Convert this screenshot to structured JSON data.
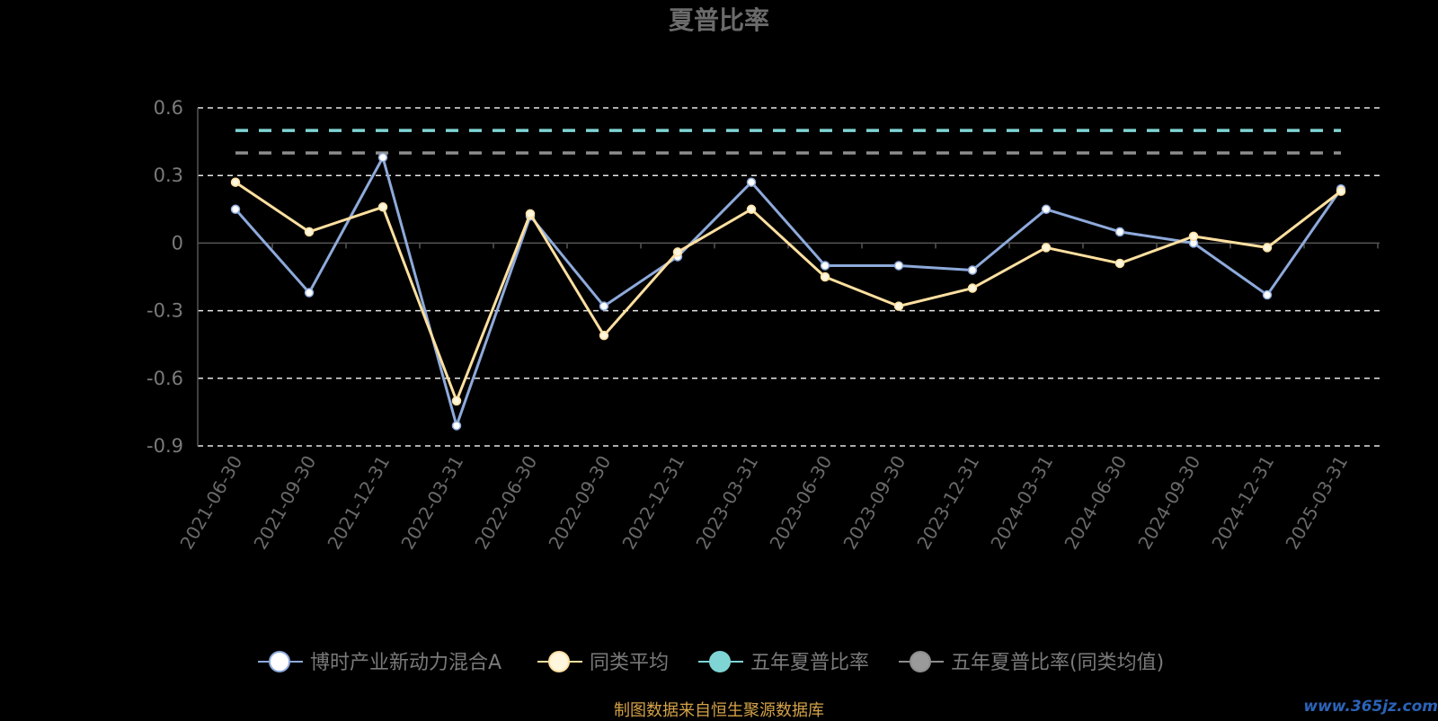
{
  "chart_data": {
    "type": "line",
    "title": "夏普比率",
    "categories": [
      "2021-06-30",
      "2021-09-30",
      "2021-12-31",
      "2022-03-31",
      "2022-06-30",
      "2022-09-30",
      "2022-12-31",
      "2023-03-31",
      "2023-06-30",
      "2023-09-30",
      "2023-12-31",
      "2024-03-31",
      "2024-06-30",
      "2024-09-30",
      "2024-12-31",
      "2025-03-31"
    ],
    "yticks": [
      0.6,
      0.3,
      0,
      -0.3,
      -0.6,
      -0.9
    ],
    "ytick_labels": [
      "0.6",
      "0.3",
      "0",
      "-0.3",
      "-0.6",
      "-0.9"
    ],
    "ylim": [
      -0.9,
      0.6
    ],
    "grid": true,
    "legend_position": "bottom",
    "series": [
      {
        "name": "博时产业新动力混合A",
        "color": "#8eaadb",
        "marker_fill": "#ffffff",
        "values": [
          0.15,
          -0.22,
          0.38,
          -0.81,
          0.12,
          -0.28,
          -0.06,
          0.27,
          -0.1,
          -0.1,
          -0.12,
          0.15,
          0.05,
          0.0,
          -0.23,
          0.24
        ]
      },
      {
        "name": "同类平均",
        "color": "#ffe0a0",
        "marker_fill": "#fff6de",
        "values": [
          0.27,
          0.05,
          0.16,
          -0.7,
          0.13,
          -0.41,
          -0.04,
          0.15,
          -0.15,
          -0.28,
          -0.2,
          -0.02,
          -0.09,
          0.03,
          -0.02,
          0.23
        ]
      },
      {
        "name": "五年夏普比率",
        "color": "#7fd4d4",
        "marker_fill": "#7fd4d4",
        "values": [
          0.5,
          0.5,
          0.5,
          0.5,
          0.5,
          0.5,
          0.5,
          0.5,
          0.5,
          0.5,
          0.5,
          0.5,
          0.5,
          0.5,
          0.5,
          0.5
        ]
      },
      {
        "name": "五年夏普比率(同类均值)",
        "color": "#8c8c8c",
        "marker_fill": "#9a9a9a",
        "values": [
          0.4,
          0.4,
          0.4,
          0.4,
          0.4,
          0.4,
          0.4,
          0.4,
          0.4,
          0.4,
          0.4,
          0.4,
          0.4,
          0.4,
          0.4,
          0.4
        ]
      }
    ]
  },
  "footer": {
    "source": "制图数据来自恒生聚源数据库",
    "watermark": "www.365jz.com"
  }
}
